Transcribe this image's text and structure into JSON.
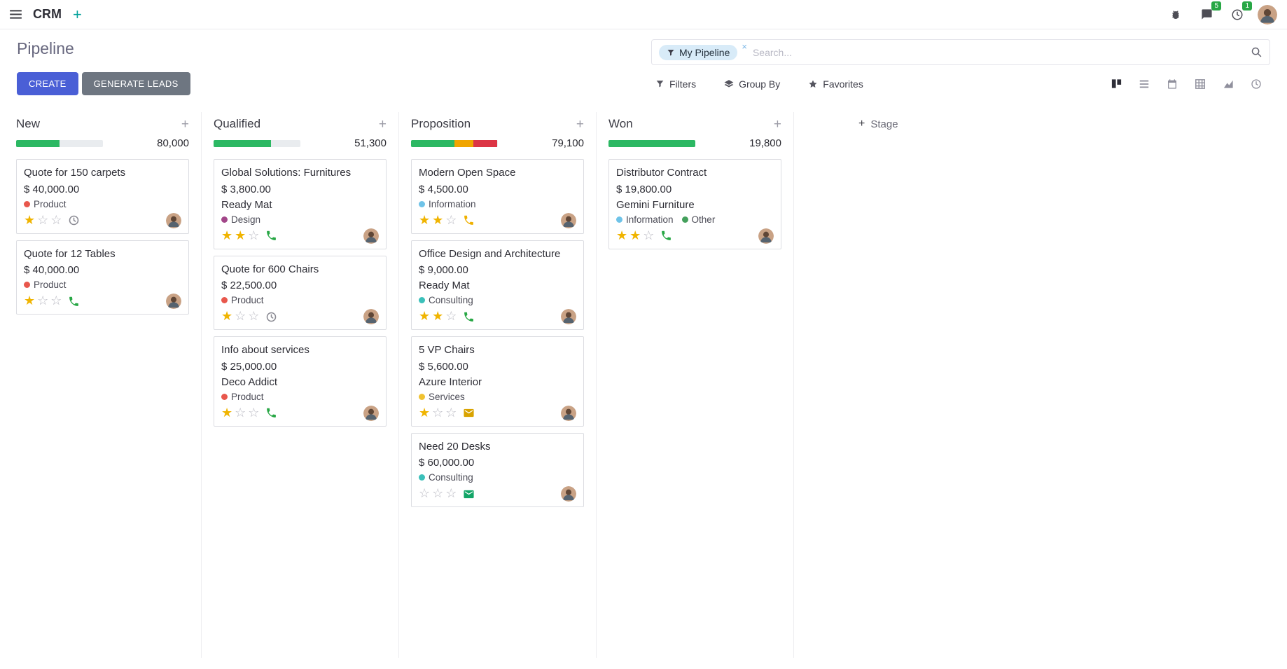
{
  "colors": {
    "accent": "#4a5fd6",
    "secondary": "#6e7681",
    "badge_green": "#28a745",
    "progress_muted": "#e9ecef",
    "star_gold": "#f0b400"
  },
  "navbar": {
    "app_name": "CRM",
    "plus_label": "+",
    "messages_badge": "5",
    "activities_badge": "1",
    "icons": [
      "apps-menu-icon",
      "bug-icon",
      "messages-icon",
      "activities-clock-icon",
      "user-avatar"
    ]
  },
  "control_panel": {
    "title": "Pipeline",
    "create_label": "CREATE",
    "generate_leads_label": "GENERATE LEADS",
    "search": {
      "facet": "My Pipeline",
      "facet_icon": "filter-icon",
      "remove_label": "×",
      "placeholder": "Search...",
      "search_icon": "magnifier-icon"
    },
    "filter_buttons": [
      {
        "icon": "filter-icon",
        "label": "Filters"
      },
      {
        "icon": "layers-icon",
        "label": "Group By"
      },
      {
        "icon": "star-icon",
        "label": "Favorites"
      }
    ]
  },
  "view_switcher": {
    "active": "kanban",
    "views": [
      "kanban",
      "list",
      "calendar",
      "pivot",
      "graph",
      "activity"
    ]
  },
  "kanban": {
    "add_stage_plus": "+",
    "add_stage_label": "Stage",
    "column_add_label": "+",
    "columns": [
      {
        "name": "New",
        "total": "80,000",
        "progress": [
          {
            "color": "#2cb863",
            "pct": 50
          }
        ],
        "cards": [
          {
            "title": "Quote for 150 carpets",
            "amount": "$ 40,000.00",
            "partner": "",
            "tags": [
              {
                "label": "Product",
                "color": "#e8574c"
              }
            ],
            "stars": 1,
            "activity": {
              "type": "clock",
              "color": "#8a8a93"
            }
          },
          {
            "title": "Quote for 12 Tables",
            "amount": "$ 40,000.00",
            "partner": "",
            "tags": [
              {
                "label": "Product",
                "color": "#e8574c"
              }
            ],
            "stars": 1,
            "activity": {
              "type": "phone",
              "color": "#28a745"
            }
          }
        ]
      },
      {
        "name": "Qualified",
        "total": "51,300",
        "progress": [
          {
            "color": "#2cb863",
            "pct": 66
          }
        ],
        "cards": [
          {
            "title": "Global Solutions: Furnitures",
            "amount": "$ 3,800.00",
            "partner": "Ready Mat",
            "tags": [
              {
                "label": "Design",
                "color": "#a24689"
              }
            ],
            "stars": 2,
            "activity": {
              "type": "phone",
              "color": "#28a745"
            }
          },
          {
            "title": "Quote for 600 Chairs",
            "amount": "$ 22,500.00",
            "partner": "",
            "tags": [
              {
                "label": "Product",
                "color": "#e8574c"
              }
            ],
            "stars": 1,
            "activity": {
              "type": "clock",
              "color": "#8a8a93"
            }
          },
          {
            "title": "Info about services",
            "amount": "$ 25,000.00",
            "partner": "Deco Addict",
            "tags": [
              {
                "label": "Product",
                "color": "#e8574c"
              }
            ],
            "stars": 1,
            "activity": {
              "type": "phone",
              "color": "#28a745"
            }
          }
        ]
      },
      {
        "name": "Proposition",
        "total": "79,100",
        "progress": [
          {
            "color": "#2cb863",
            "pct": 50
          },
          {
            "color": "#f0a500",
            "pct": 22
          },
          {
            "color": "#dc3545",
            "pct": 28
          }
        ],
        "cards": [
          {
            "title": "Modern Open Space",
            "amount": "$ 4,500.00",
            "partner": "",
            "tags": [
              {
                "label": "Information",
                "color": "#6fc3e8"
              }
            ],
            "stars": 2,
            "activity": {
              "type": "phone",
              "color": "#efb000"
            }
          },
          {
            "title": "Office Design and Architecture",
            "amount": "$ 9,000.00",
            "partner": "Ready Mat",
            "tags": [
              {
                "label": "Consulting",
                "color": "#3bc0ba"
              }
            ],
            "stars": 2,
            "activity": {
              "type": "phone",
              "color": "#28a745"
            }
          },
          {
            "title": "5 VP Chairs",
            "amount": "$ 5,600.00",
            "partner": "Azure Interior",
            "tags": [
              {
                "label": "Services",
                "color": "#f0c231"
              }
            ],
            "stars": 1,
            "activity": {
              "type": "envelope",
              "color": "#d9a300"
            }
          },
          {
            "title": "Need 20 Desks",
            "amount": "$ 60,000.00",
            "partner": "",
            "tags": [
              {
                "label": "Consulting",
                "color": "#3bc0ba"
              }
            ],
            "stars": 0,
            "activity": {
              "type": "envelope",
              "color": "#12a567"
            }
          }
        ]
      },
      {
        "name": "Won",
        "total": "19,800",
        "progress": [
          {
            "color": "#2cb863",
            "pct": 100
          }
        ],
        "cards": [
          {
            "title": "Distributor Contract",
            "amount": "$ 19,800.00",
            "partner": "Gemini Furniture",
            "tags": [
              {
                "label": "Information",
                "color": "#6fc3e8"
              },
              {
                "label": "Other",
                "color": "#44a05c"
              }
            ],
            "stars": 2,
            "activity": {
              "type": "phone",
              "color": "#28a745"
            }
          }
        ]
      }
    ]
  }
}
